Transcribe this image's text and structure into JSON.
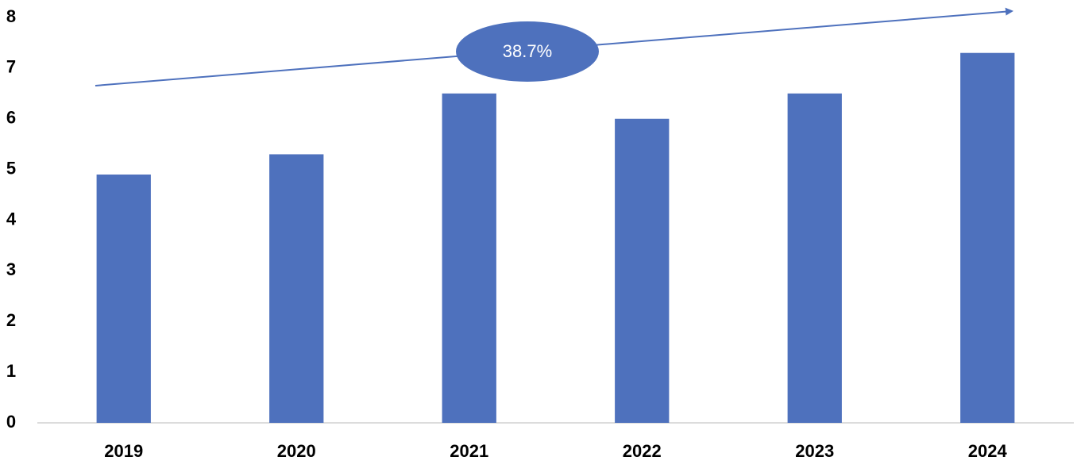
{
  "chart_data": {
    "type": "bar",
    "categories": [
      "2019",
      "2020",
      "2021",
      "2022",
      "2023",
      "2024"
    ],
    "values": [
      4.9,
      5.3,
      6.5,
      6.0,
      6.5,
      7.3
    ],
    "color": "#4e71bd",
    "ylim": [
      0,
      8
    ],
    "yticks": [
      0,
      1,
      2,
      3,
      4,
      5,
      6,
      7,
      8
    ],
    "grid": false,
    "annotation": "38.7%"
  }
}
